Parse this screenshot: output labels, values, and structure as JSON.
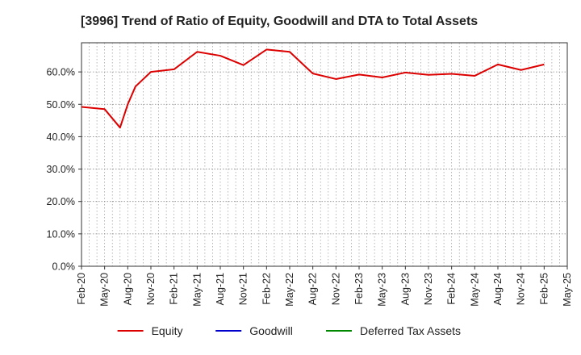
{
  "chart_data": {
    "type": "line",
    "title": "[3996]  Trend of Ratio of Equity, Goodwill and DTA to Total Assets",
    "xlabel": "",
    "ylabel": "",
    "x_ticks": [
      "Feb-20",
      "May-20",
      "Aug-20",
      "Nov-20",
      "Feb-21",
      "May-21",
      "Aug-21",
      "Nov-21",
      "Feb-22",
      "May-22",
      "Aug-22",
      "Nov-22",
      "Feb-23",
      "May-23",
      "Aug-23",
      "Nov-23",
      "Feb-24",
      "May-24",
      "Aug-24",
      "Nov-24",
      "Feb-25",
      "May-25"
    ],
    "y_ticks": [
      "0.0%",
      "10.0%",
      "20.0%",
      "30.0%",
      "40.0%",
      "50.0%",
      "60.0%"
    ],
    "ylim": [
      0,
      69
    ],
    "grid": true,
    "legend_position": "bottom",
    "series": [
      {
        "name": "Equity",
        "color": "#dd0000",
        "points": [
          {
            "x": "Feb-20",
            "y": 49.2
          },
          {
            "x": "May-20",
            "y": 48.5
          },
          {
            "x": "Jul-20",
            "y": 42.8
          },
          {
            "x": "Aug-20",
            "y": 50.0
          },
          {
            "x": "Sep-20",
            "y": 55.5
          },
          {
            "x": "Nov-20",
            "y": 60.0
          },
          {
            "x": "Feb-21",
            "y": 60.8
          },
          {
            "x": "May-21",
            "y": 66.2
          },
          {
            "x": "Aug-21",
            "y": 65.0
          },
          {
            "x": "Nov-21",
            "y": 62.1
          },
          {
            "x": "Feb-22",
            "y": 66.9
          },
          {
            "x": "May-22",
            "y": 66.2
          },
          {
            "x": "Aug-22",
            "y": 59.5
          },
          {
            "x": "Nov-22",
            "y": 57.8
          },
          {
            "x": "Feb-23",
            "y": 59.2
          },
          {
            "x": "May-23",
            "y": 58.3
          },
          {
            "x": "Aug-23",
            "y": 59.8
          },
          {
            "x": "Nov-23",
            "y": 59.1
          },
          {
            "x": "Feb-24",
            "y": 59.4
          },
          {
            "x": "May-24",
            "y": 58.8
          },
          {
            "x": "Aug-24",
            "y": 62.3
          },
          {
            "x": "Nov-24",
            "y": 60.6
          },
          {
            "x": "Feb-25",
            "y": 62.3
          }
        ]
      },
      {
        "name": "Goodwill",
        "color": "#0000cc",
        "points": []
      },
      {
        "name": "Deferred Tax Assets",
        "color": "#008800",
        "points": []
      }
    ]
  }
}
